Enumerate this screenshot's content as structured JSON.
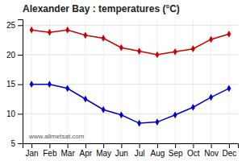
{
  "chart_data": {
    "type": "line",
    "title": "Alexander Bay : temperatures (°C)",
    "categories": [
      "Jan",
      "Feb",
      "Mar",
      "Apr",
      "May",
      "Jun",
      "Jul",
      "Aug",
      "Sep",
      "Oct",
      "Nov",
      "Dec"
    ],
    "series": [
      {
        "color": "#cc0000",
        "marker": "diamond",
        "values": [
          24.2,
          23.8,
          24.2,
          23.3,
          22.8,
          21.2,
          20.6,
          20.0,
          20.5,
          21.0,
          22.6,
          23.5
        ]
      },
      {
        "color": "#0000cc",
        "marker": "diamond",
        "values": [
          15.0,
          15.0,
          14.3,
          12.5,
          10.7,
          9.8,
          8.4,
          8.6,
          9.8,
          11.1,
          12.8,
          14.3
        ]
      }
    ],
    "ylim": [
      5,
      26
    ],
    "yticks": [
      5,
      10,
      15,
      20,
      25
    ],
    "grid": true,
    "annotations": [
      "www.allmetsat.com"
    ]
  }
}
